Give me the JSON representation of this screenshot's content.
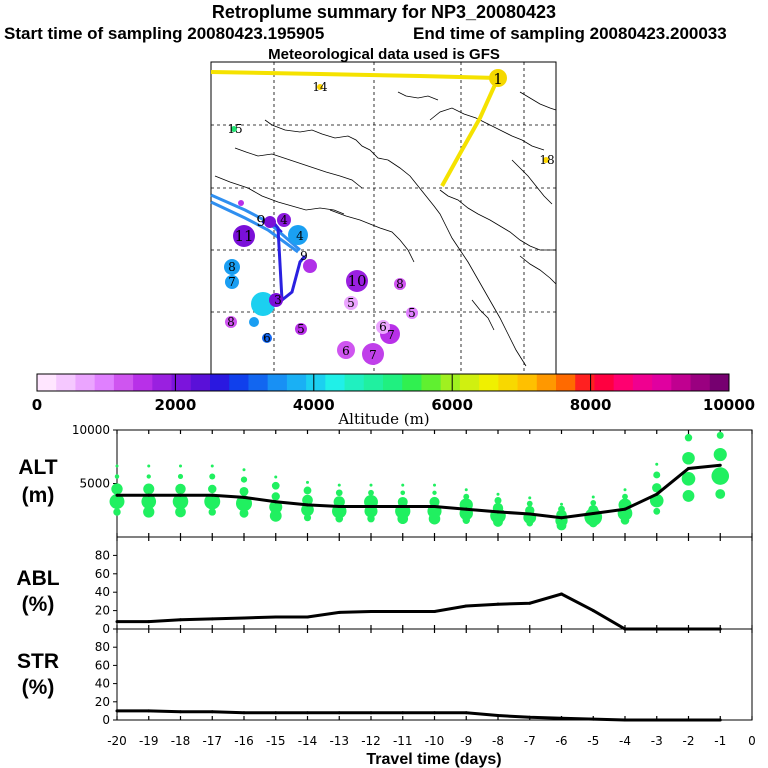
{
  "header": {
    "title": "Retroplume summary for NP3_20080423",
    "start": "Start time of sampling 20080423.195905",
    "end": "End time of sampling 20080423.200033",
    "met": "Meteorological data used is GFS"
  },
  "colorbar": {
    "label": "Altitude (m)",
    "ticks": [
      "0",
      "2000",
      "4000",
      "6000",
      "8000",
      "10000"
    ],
    "colors": [
      "#ffe6ff",
      "#f5c8ff",
      "#eba5ff",
      "#e080ff",
      "#cf55f0",
      "#b830e8",
      "#9a20e0",
      "#7c14dc",
      "#5a10d8",
      "#2a18e0",
      "#1040ec",
      "#1266f0",
      "#1890f4",
      "#1ab0f4",
      "#1cd0f0",
      "#20f0e8",
      "#20f0c0",
      "#20f0a0",
      "#20f080",
      "#30f050",
      "#60f030",
      "#a0f020",
      "#d0f010",
      "#f0f000",
      "#f8d800",
      "#ffc000",
      "#ff9800",
      "#ff6a00",
      "#ff2020",
      "#ff0040",
      "#ff0070",
      "#f00090",
      "#e000a0",
      "#c00090",
      "#9a0080",
      "#760070"
    ]
  },
  "map": {
    "labels": [
      {
        "t": "1",
        "c": "#ffd700"
      },
      {
        "t": "14",
        "c": "#ffd700"
      },
      {
        "t": "15",
        "c": "#20e070"
      },
      {
        "t": "18",
        "c": "#ffd700"
      },
      {
        "t": "11",
        "c": "#7a10d8"
      },
      {
        "t": "4",
        "c": "#1a9ef2"
      },
      {
        "t": "4",
        "c": "#9a20e0"
      },
      {
        "t": "9",
        "c": "#7a10d8"
      },
      {
        "t": "8",
        "c": "#1a9ef2"
      },
      {
        "t": "7",
        "c": "#1a9ef2"
      },
      {
        "t": "10",
        "c": "#9a20e0"
      },
      {
        "t": "8",
        "c": "#cf55f0"
      },
      {
        "t": "5",
        "c": "#1cd0f0"
      },
      {
        "t": "5",
        "c": "#e080ff"
      },
      {
        "t": "7",
        "c": "#e080ff"
      },
      {
        "t": "6",
        "c": "#cf55f0"
      },
      {
        "t": "6",
        "c": "#e080ff"
      },
      {
        "t": "7",
        "c": "#b830e8"
      },
      {
        "t": "8",
        "c": "#cf55f0"
      },
      {
        "t": "5",
        "c": "#b830e8"
      },
      {
        "t": "6",
        "c": "#1266f0"
      },
      {
        "t": "3",
        "c": "#9a20e0"
      },
      {
        "t": "9",
        "c": "#7a10d8"
      }
    ]
  },
  "panels": {
    "alt": [
      "ALT",
      "(m)"
    ],
    "abl": [
      "ABL",
      "(%)"
    ],
    "str": [
      "STR",
      "(%)"
    ]
  },
  "chart_data": [
    {
      "type": "line",
      "id": "alt",
      "title": "ALT (m)",
      "x": [
        -20,
        -19,
        -18,
        -17,
        -16,
        -15,
        -14,
        -13,
        -12,
        -11,
        -10,
        -9,
        -8,
        -7,
        -6,
        -5,
        -4,
        -3,
        -2,
        -1
      ],
      "values": [
        3900,
        3900,
        3900,
        3900,
        3700,
        3300,
        3000,
        2850,
        2850,
        2850,
        2850,
        2600,
        2350,
        2150,
        1800,
        2200,
        2600,
        4000,
        6400,
        6700
      ],
      "ylim": [
        0,
        10000
      ],
      "yticks": [
        "10000",
        "5000"
      ],
      "scatter_color": "#20f060"
    },
    {
      "type": "line",
      "id": "abl",
      "title": "ABL (%)",
      "x": [
        -20,
        -19,
        -18,
        -17,
        -16,
        -15,
        -14,
        -13,
        -12,
        -11,
        -10,
        -9,
        -8,
        -7,
        -6,
        -5,
        -4,
        -3,
        -2,
        -1
      ],
      "values": [
        8,
        8,
        10,
        11,
        12,
        13,
        13,
        18,
        19,
        19,
        19,
        25,
        27,
        28,
        38,
        20,
        0,
        0,
        0,
        0
      ],
      "ylim": [
        0,
        100
      ],
      "yticks": [
        "80",
        "60",
        "40",
        "20",
        "0"
      ]
    },
    {
      "type": "line",
      "id": "str",
      "title": "STR (%)",
      "x": [
        -20,
        -19,
        -18,
        -17,
        -16,
        -15,
        -14,
        -13,
        -12,
        -11,
        -10,
        -9,
        -8,
        -7,
        -6,
        -5,
        -4,
        -3,
        -2,
        -1
      ],
      "values": [
        10,
        10,
        9,
        9,
        8,
        8,
        8,
        8,
        8,
        8,
        8,
        8,
        5,
        3,
        2,
        1,
        0,
        0,
        0,
        0
      ],
      "ylim": [
        0,
        100
      ],
      "yticks": [
        "80",
        "60",
        "40",
        "20",
        "0"
      ]
    }
  ],
  "xaxis": {
    "label": "Travel time (days)",
    "ticks": [
      "-20",
      "-19",
      "-18",
      "-17",
      "-16",
      "-15",
      "-14",
      "-13",
      "-12",
      "-11",
      "-10",
      "-9",
      "-8",
      "-7",
      "-6",
      "-5",
      "-4",
      "-3",
      "-2",
      "-1",
      "0"
    ]
  }
}
